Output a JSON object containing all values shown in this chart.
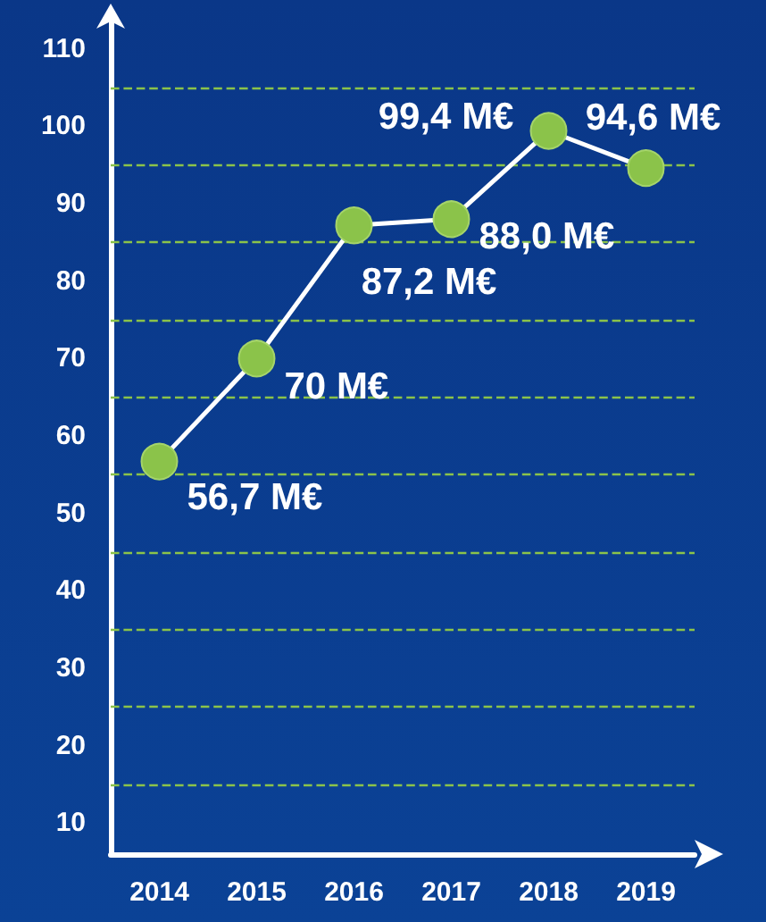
{
  "chart_data": {
    "type": "line",
    "categories": [
      "2014",
      "2015",
      "2016",
      "2017",
      "2018",
      "2019"
    ],
    "series": [
      {
        "color": "#ffffff",
        "values": [
          56.7,
          70,
          87.2,
          88.0,
          99.4,
          94.6
        ]
      }
    ],
    "value_labels": [
      "56,7 M€",
      "70 M€",
      "87,2 M€",
      "88,0 M€",
      "99,4 M€",
      "94,6 M€"
    ],
    "ylim": [
      6,
      114
    ],
    "yticks": [
      10,
      20,
      30,
      40,
      50,
      60,
      70,
      80,
      90,
      100,
      110
    ],
    "grid": false,
    "marker": "circle",
    "line_style": "solid",
    "ref_lines": [
      {
        "axis": "y",
        "value": 15,
        "color": "#8bc34a",
        "line_style": "dashed"
      },
      {
        "axis": "y",
        "value": 25,
        "color": "#8bc34a",
        "line_style": "dashed"
      },
      {
        "axis": "y",
        "value": 35,
        "color": "#8bc34a",
        "line_style": "dashed"
      },
      {
        "axis": "y",
        "value": 45,
        "color": "#8bc34a",
        "line_style": "dashed"
      },
      {
        "axis": "y",
        "value": 55,
        "color": "#8bc34a",
        "line_style": "dashed"
      },
      {
        "axis": "y",
        "value": 65,
        "color": "#8bc34a",
        "line_style": "dashed"
      },
      {
        "axis": "y",
        "value": 75,
        "color": "#8bc34a",
        "line_style": "dashed"
      },
      {
        "axis": "y",
        "value": 85,
        "color": "#8bc34a",
        "line_style": "dashed"
      },
      {
        "axis": "y",
        "value": 95,
        "color": "#8bc34a",
        "line_style": "dashed"
      },
      {
        "axis": "y",
        "value": 105,
        "color": "#8bc34a",
        "line_style": "dashed"
      }
    ]
  }
}
